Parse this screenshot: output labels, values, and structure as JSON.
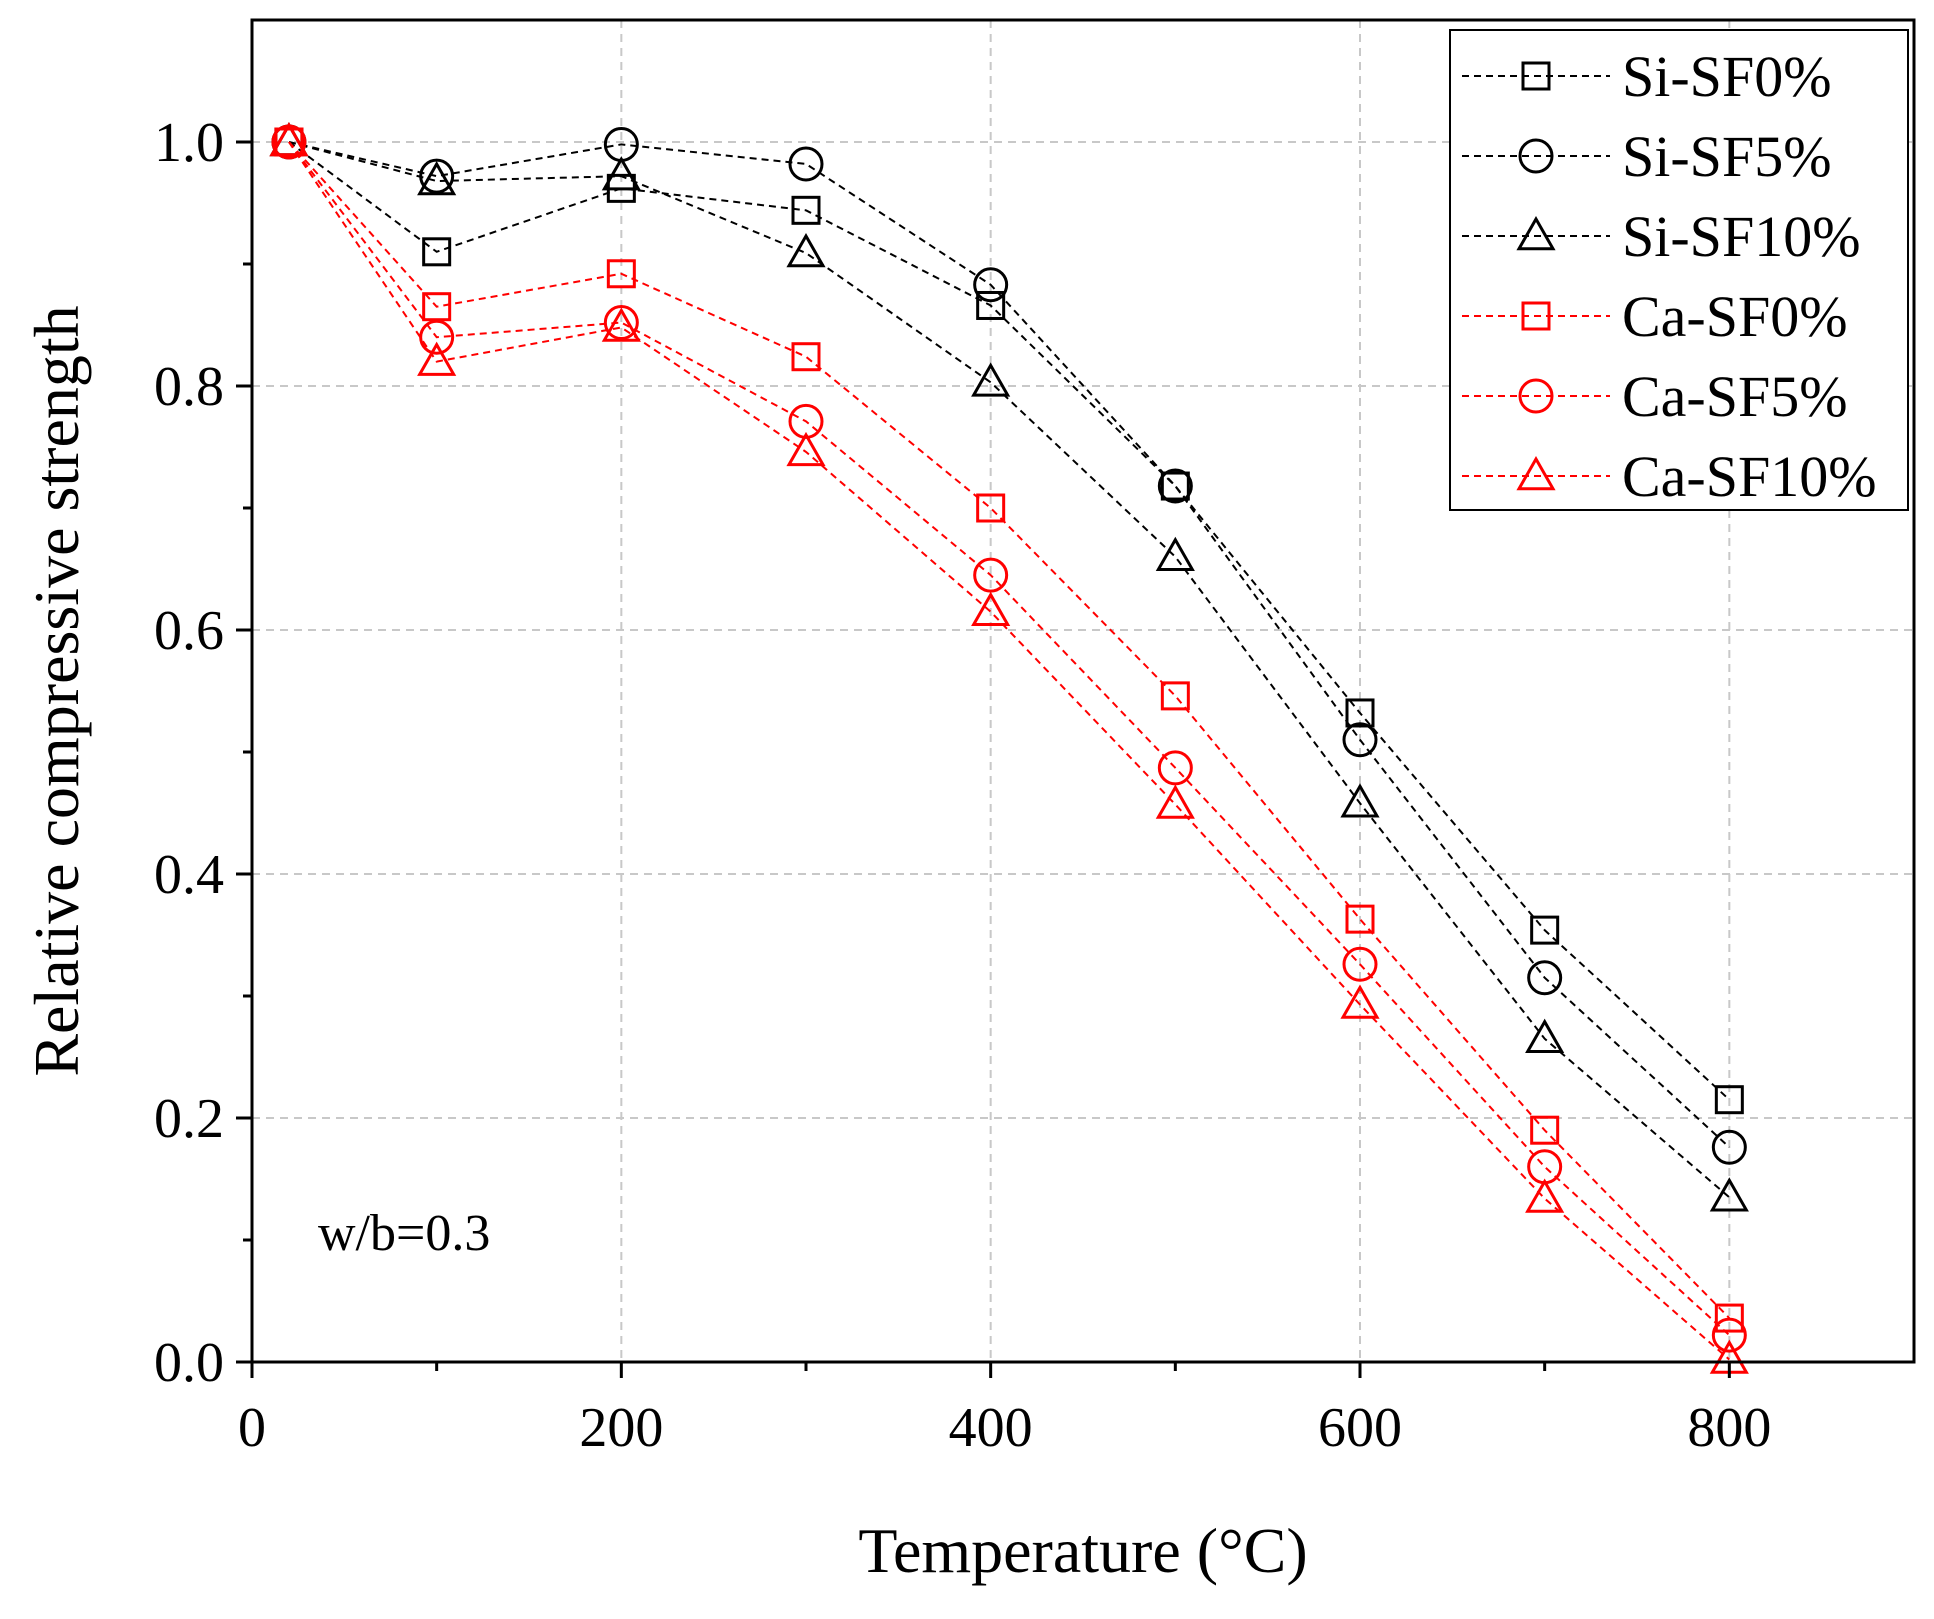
{
  "chart_data": {
    "type": "line",
    "title": "",
    "xlabel": "Temperature (°C)",
    "ylabel": "Relative compressive strength",
    "xlim": [
      0,
      900
    ],
    "ylim": [
      0,
      1.1
    ],
    "x_ticks": [
      0,
      200,
      400,
      600,
      800
    ],
    "x_tick_labels": [
      "0",
      "200",
      "400",
      "600",
      "800"
    ],
    "x_minor_ticks": [
      100,
      300,
      500,
      700
    ],
    "y_ticks": [
      0.0,
      0.2,
      0.4,
      0.6,
      0.8,
      1.0
    ],
    "y_tick_labels": [
      "0.0",
      "0.2",
      "0.4",
      "0.6",
      "0.8",
      "1.0"
    ],
    "y_minor_ticks": [
      0.1,
      0.3,
      0.5,
      0.7,
      0.9
    ],
    "grid": true,
    "legend_position": "top-right",
    "annotation": "w/b=0.3",
    "x": [
      20,
      100,
      200,
      300,
      400,
      500,
      600,
      700,
      800
    ],
    "series": [
      {
        "name": "Si-SF0%",
        "color": "#000000",
        "marker": "square",
        "values": [
          1.0,
          0.91,
          0.962,
          0.944,
          0.866,
          0.718,
          0.532,
          0.354,
          0.215
        ]
      },
      {
        "name": "Si-SF5%",
        "color": "#000000",
        "marker": "circle",
        "values": [
          1.0,
          0.972,
          0.998,
          0.982,
          0.883,
          0.718,
          0.51,
          0.315,
          0.176
        ]
      },
      {
        "name": "Si-SF10%",
        "color": "#000000",
        "marker": "triangle",
        "values": [
          1.0,
          0.968,
          0.972,
          0.909,
          0.803,
          0.66,
          0.458,
          0.265,
          0.135
        ]
      },
      {
        "name": "Ca-SF0%",
        "color": "#ff0000",
        "marker": "square",
        "values": [
          1.0,
          0.865,
          0.892,
          0.824,
          0.7,
          0.546,
          0.363,
          0.19,
          0.036
        ]
      },
      {
        "name": "Ca-SF5%",
        "color": "#ff0000",
        "marker": "circle",
        "values": [
          1.0,
          0.84,
          0.852,
          0.771,
          0.645,
          0.487,
          0.326,
          0.16,
          0.022
        ]
      },
      {
        "name": "Ca-SF10%",
        "color": "#ff0000",
        "marker": "triangle",
        "values": [
          1.0,
          0.82,
          0.848,
          0.746,
          0.615,
          0.457,
          0.293,
          0.134,
          0.002
        ]
      }
    ]
  }
}
